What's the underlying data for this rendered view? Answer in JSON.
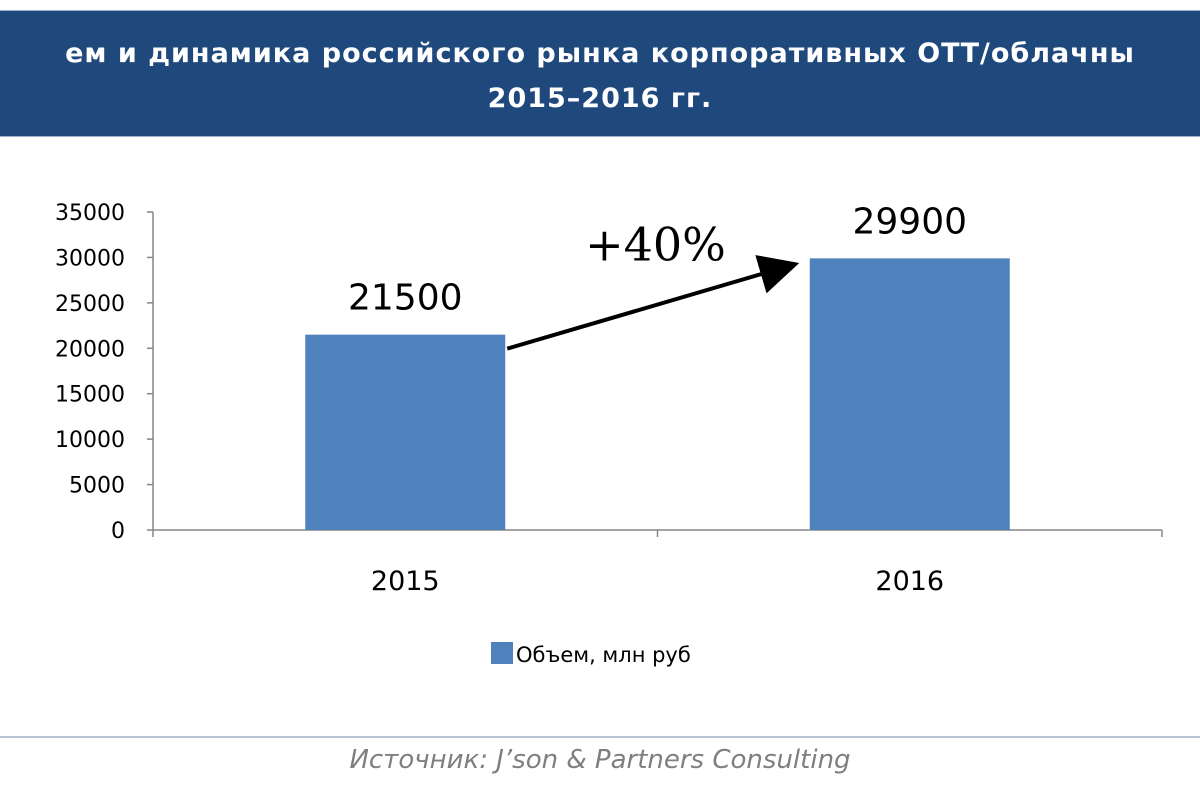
{
  "header": {
    "title_line1": "ем и динамика российского рынка корпоративных ОТТ/облачны",
    "title_line2": "2015–2016 гг."
  },
  "chart_data": {
    "type": "bar",
    "categories": [
      "2015",
      "2016"
    ],
    "series": [
      {
        "name": "Объем, млн руб",
        "values": [
          21500,
          29900
        ],
        "color": "#4f81bd"
      }
    ],
    "data_labels": [
      "21500",
      "29900"
    ],
    "ylim": [
      0,
      35000
    ],
    "yticks": [
      0,
      5000,
      10000,
      15000,
      20000,
      25000,
      30000,
      35000
    ],
    "grid": false,
    "legend_position": "bottom",
    "annotation": {
      "text": "+40%",
      "from": "2015",
      "to": "2016"
    }
  },
  "footer": {
    "source": "Источник: J’son & Partners Consulting"
  },
  "colors": {
    "banner": "#1f497d",
    "bar": "#4f81bd",
    "source_text": "#7f7f7f"
  }
}
